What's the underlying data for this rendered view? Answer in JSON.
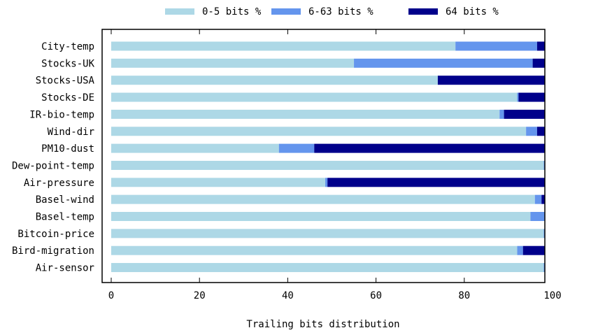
{
  "chart_data": {
    "type": "bar",
    "orientation": "horizontal",
    "stacked": true,
    "title": "",
    "xlabel": "Trailing bits distribution",
    "ylabel": "",
    "xlim": [
      0,
      100
    ],
    "xticks": [
      "0",
      "20",
      "40",
      "60",
      "80",
      "100"
    ],
    "grid": false,
    "legend_position": "top",
    "categories": [
      "City-temp",
      "Stocks-UK",
      "Stocks-USA",
      "Stocks-DE",
      "IR-bio-temp",
      "Wind-dir",
      "PM10-dust",
      "Dew-point-temp",
      "Air-pressure",
      "Basel-wind",
      "Basel-temp",
      "Bitcoin-price",
      "Bird-migration",
      "Air-sensor"
    ],
    "series": [
      {
        "name": "0-5 bits %",
        "color": "#add8e6",
        "values": [
          78,
          55,
          74,
          92,
          88,
          94,
          38,
          98,
          48.5,
          96,
          95,
          98,
          92,
          98
        ]
      },
      {
        "name": "6-63 bits %",
        "color": "#6495ed",
        "values": [
          18.5,
          40.5,
          0,
          0.3,
          1,
          2.5,
          8,
          1.2,
          0.5,
          1.5,
          4,
          1.5,
          1.3,
          1.5
        ]
      },
      {
        "name": "64 bits %",
        "color": "#00008b",
        "values": [
          3.5,
          4.5,
          26,
          7.7,
          11,
          3.5,
          54,
          0.8,
          51,
          2.5,
          1,
          0.5,
          6.7,
          0.5
        ]
      }
    ]
  }
}
